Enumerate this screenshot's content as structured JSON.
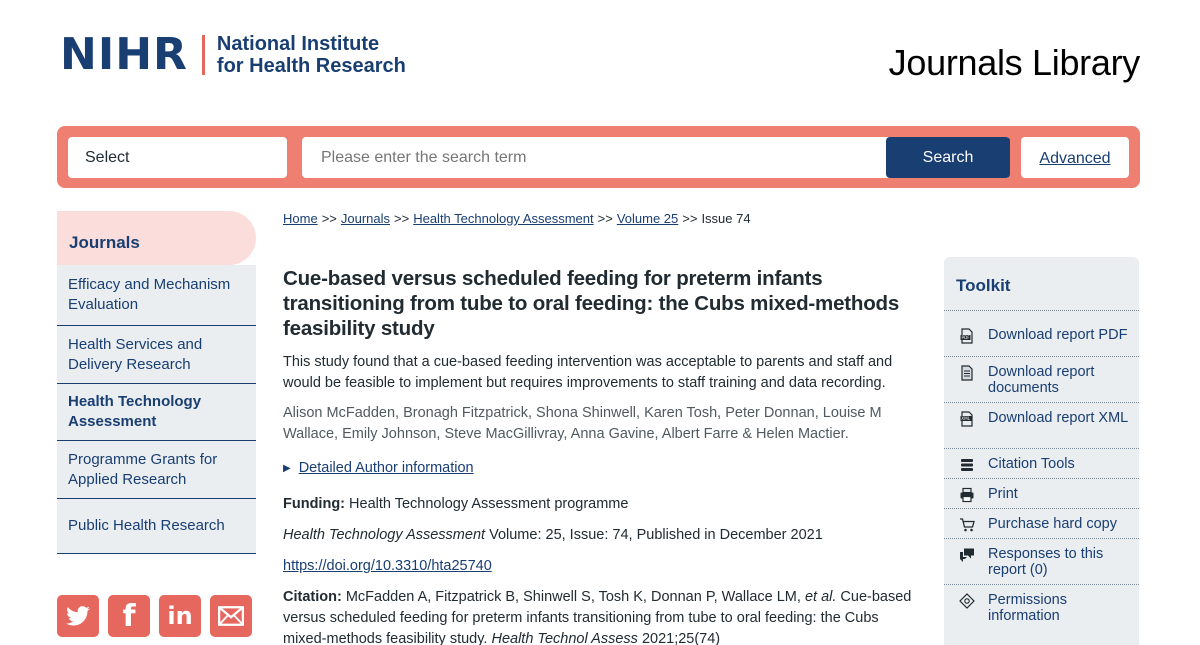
{
  "header": {
    "logo_mark": "NIHR",
    "logo_line1": "National Institute",
    "logo_line2": "for Health Research",
    "site_title": "Journals Library"
  },
  "search": {
    "select_value": "Select",
    "placeholder": "Please enter the search term",
    "button_label": "Search",
    "advanced_label": "Advanced"
  },
  "sidebar": {
    "heading": "Journals",
    "items": [
      {
        "label": "Efficacy and Mechanism Evaluation"
      },
      {
        "label": "Health Services and Delivery Research"
      },
      {
        "label": "Health Technology Assessment"
      },
      {
        "label": "Programme Grants for Applied Research"
      },
      {
        "label": "Public Health Research"
      }
    ]
  },
  "social": {
    "twitter": "twitter-icon",
    "facebook": "f",
    "linkedin": "in",
    "email": "envelope-icon"
  },
  "breadcrumb": {
    "home": "Home",
    "journals": "Journals",
    "journal": "Health Technology Assessment",
    "volume": "Volume 25",
    "issue": "Issue 74",
    "separator": ">>"
  },
  "article": {
    "title": "Cue-based versus scheduled feeding for preterm infants transitioning from tube to oral feeding: the Cubs mixed-methods feasibility study",
    "summary": "This study found that a cue-based feeding intervention was acceptable to parents and staff and would be feasible to implement but requires improvements to staff training and data recording.",
    "authors": "Alison McFadden, Bronagh Fitzpatrick, Shona Shinwell, Karen Tosh, Peter Donnan, Louise M Wallace, Emily Johnson, Steve MacGillivray, Anna Gavine, Albert Farre & Helen Mactier.",
    "details_label": "Detailed Author information",
    "funding_label": "Funding:",
    "funding_value": "Health Technology Assessment programme",
    "journal_name": "Health Technology Assessment",
    "publication_info": "Volume: 25, Issue: 74, Published in December 2021",
    "doi": "https://doi.org/10.3310/hta25740",
    "citation_label": "Citation:",
    "citation_authors": "McFadden A, Fitzpatrick B, Shinwell S, Tosh K, Donnan P, Wallace LM,",
    "citation_etal": "et al.",
    "citation_title": "Cue-based versus scheduled feeding for preterm infants transitioning from tube to oral feeding: the Cubs mixed-methods feasibility study.",
    "citation_journal": "Health Technol Assess",
    "citation_year": "2021;25(74)"
  },
  "toolkit": {
    "heading": "Toolkit",
    "items": [
      {
        "label": "Download report PDF",
        "icon": "pdf-icon"
      },
      {
        "label": "Download report documents",
        "icon": "document-icon"
      },
      {
        "label": "Download report XML",
        "icon": "xml-icon"
      },
      {
        "label": "Citation Tools",
        "icon": "stack-icon"
      },
      {
        "label": "Print",
        "icon": "printer-icon"
      },
      {
        "label": "Purchase hard copy",
        "icon": "cart-icon"
      },
      {
        "label": "Responses to this report (0)",
        "icon": "comments-icon"
      },
      {
        "label": "Permissions information",
        "icon": "certificate-icon"
      }
    ]
  },
  "colors": {
    "navy": "#193e72",
    "coral": "#ef7f71",
    "panel": "#eaeef1",
    "highlight": "#fbdedc"
  }
}
